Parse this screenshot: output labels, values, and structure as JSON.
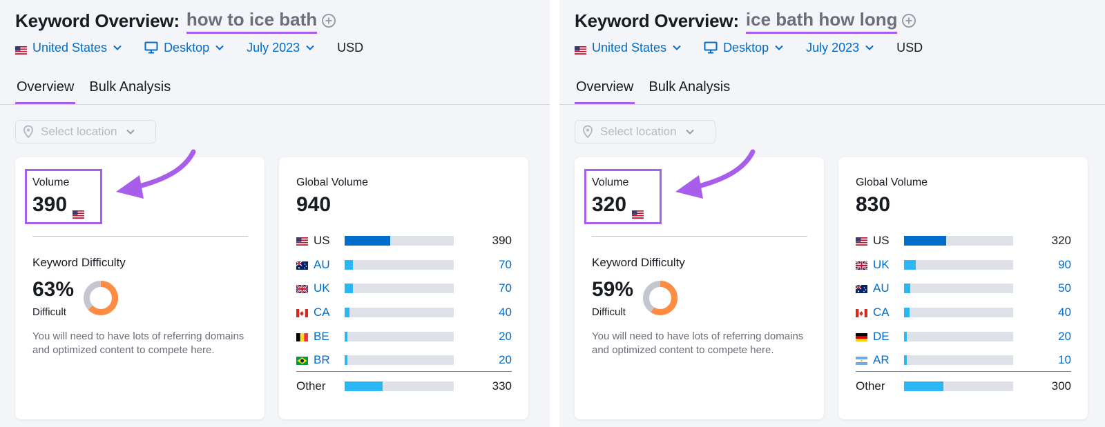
{
  "colors": {
    "accent_purple": "#a75eea",
    "link_blue": "#006dca",
    "bar_dark_blue": "#006dca",
    "bar_light_blue": "#2bb7f3",
    "bar_track": "#dfe1e8",
    "kd_orange": "#ff8c43",
    "kd_grey": "#c4c7cf"
  },
  "panels": [
    {
      "title_prefix": "Keyword Overview:",
      "keyword": "how to ice bath",
      "filters": {
        "country": "United States",
        "device": "Desktop",
        "date": "July 2023",
        "currency": "USD"
      },
      "tabs": [
        "Overview",
        "Bulk Analysis"
      ],
      "active_tab": "Overview",
      "location_placeholder": "Select location",
      "volume": {
        "label": "Volume",
        "value": "390",
        "flag": "flag-us"
      },
      "keyword_difficulty": {
        "label": "Keyword Difficulty",
        "value": "63%",
        "percent": 63,
        "level": "Difficult",
        "description": "You will need to have lots of referring domains and optimized content to compete here."
      },
      "global_volume": {
        "label": "Global Volume",
        "value": "940",
        "rows": [
          {
            "flag": "flag-us",
            "code": "US",
            "value": "390",
            "share": 0.415,
            "primary": true
          },
          {
            "flag": "flag-au",
            "code": "AU",
            "value": "70",
            "share": 0.075,
            "primary": false
          },
          {
            "flag": "flag-uk",
            "code": "UK",
            "value": "70",
            "share": 0.075,
            "primary": false
          },
          {
            "flag": "flag-ca",
            "code": "CA",
            "value": "40",
            "share": 0.043,
            "primary": false
          },
          {
            "flag": "flag-be",
            "code": "BE",
            "value": "20",
            "share": 0.021,
            "primary": false
          },
          {
            "flag": "flag-br",
            "code": "BR",
            "value": "20",
            "share": 0.021,
            "primary": false
          }
        ],
        "other": {
          "label": "Other",
          "value": "330",
          "share": 0.351
        }
      }
    },
    {
      "title_prefix": "Keyword Overview:",
      "keyword": "ice bath how long",
      "filters": {
        "country": "United States",
        "device": "Desktop",
        "date": "July 2023",
        "currency": "USD"
      },
      "tabs": [
        "Overview",
        "Bulk Analysis"
      ],
      "active_tab": "Overview",
      "location_placeholder": "Select location",
      "volume": {
        "label": "Volume",
        "value": "320",
        "flag": "flag-us"
      },
      "keyword_difficulty": {
        "label": "Keyword Difficulty",
        "value": "59%",
        "percent": 59,
        "level": "Difficult",
        "description": "You will need to have lots of referring domains and optimized content to compete here."
      },
      "global_volume": {
        "label": "Global Volume",
        "value": "830",
        "rows": [
          {
            "flag": "flag-us",
            "code": "US",
            "value": "320",
            "share": 0.386,
            "primary": true
          },
          {
            "flag": "flag-uk",
            "code": "UK",
            "value": "90",
            "share": 0.108,
            "primary": false
          },
          {
            "flag": "flag-au",
            "code": "AU",
            "value": "50",
            "share": 0.06,
            "primary": false
          },
          {
            "flag": "flag-ca",
            "code": "CA",
            "value": "40",
            "share": 0.048,
            "primary": false
          },
          {
            "flag": "flag-de",
            "code": "DE",
            "value": "20",
            "share": 0.024,
            "primary": false
          },
          {
            "flag": "flag-ar",
            "code": "AR",
            "value": "10",
            "share": 0.012,
            "primary": false
          }
        ],
        "other": {
          "label": "Other",
          "value": "300",
          "share": 0.361
        }
      }
    }
  ]
}
